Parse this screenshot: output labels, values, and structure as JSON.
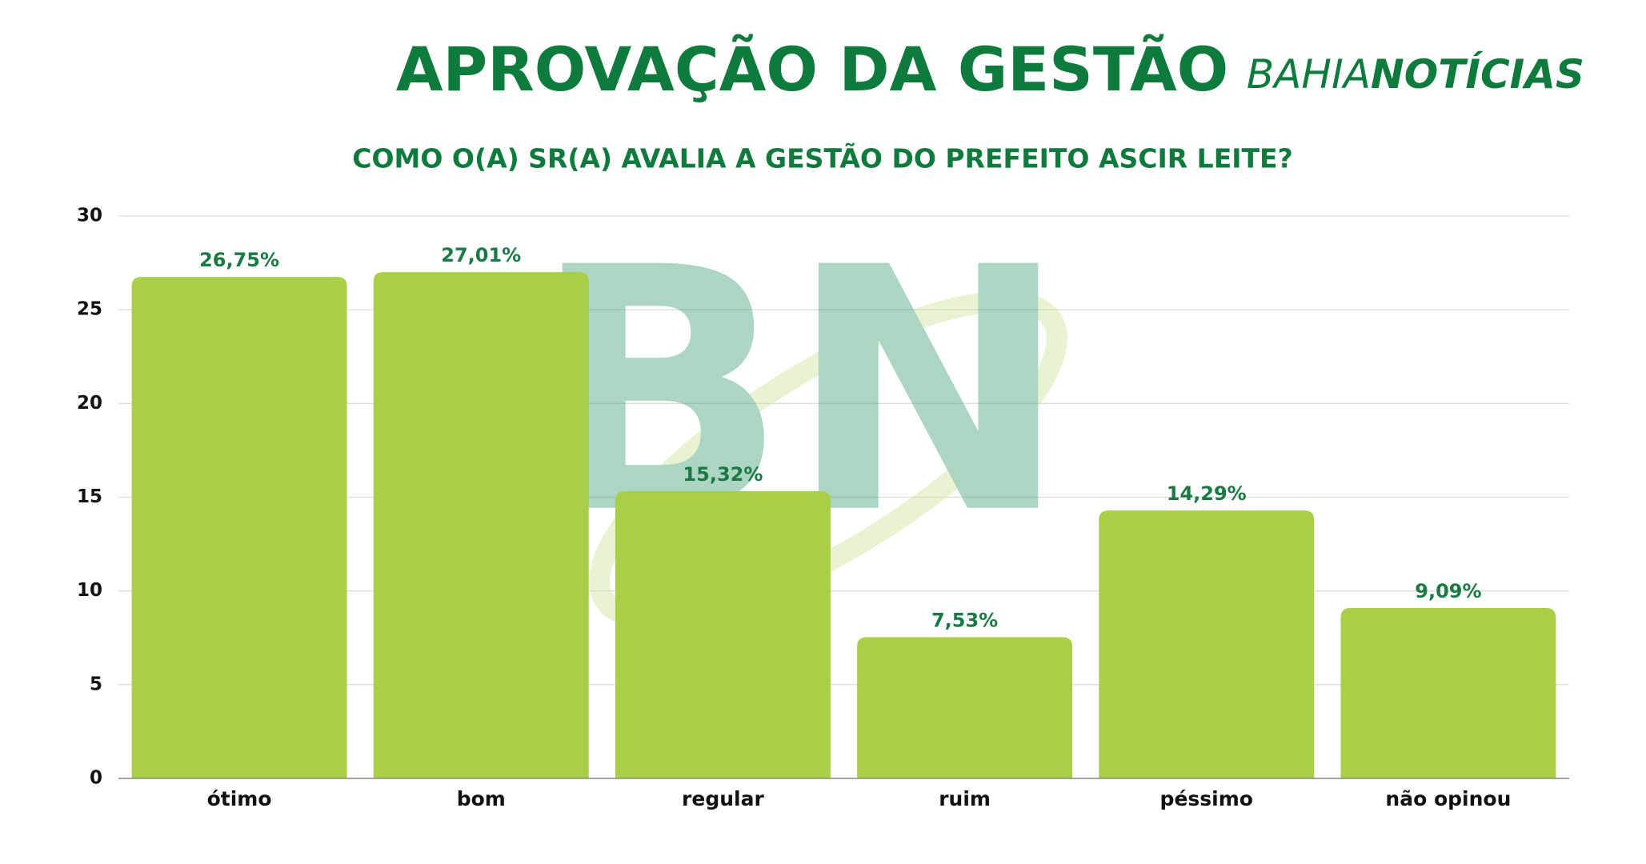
{
  "chart_data": {
    "type": "bar",
    "title": "APROVAÇÃO DA GESTÃO",
    "subtitle": "COMO O(A) SR(A) AVALIA A GESTÃO DO PREFEITO ASCIR LEITE?",
    "logo": {
      "light": "BAHIA",
      "bold": "NOTÍCIAS"
    },
    "watermark": "BN",
    "categories": [
      "ótimo",
      "bom",
      "regular",
      "ruim",
      "péssimo",
      "não opinou"
    ],
    "values": [
      26.75,
      27.01,
      15.32,
      7.53,
      14.29,
      9.09
    ],
    "value_labels": [
      "26,75%",
      "27,01%",
      "15,32%",
      "7,53%",
      "14,29%",
      "9,09%"
    ],
    "color": "#a8cf45",
    "ylim": [
      0,
      30
    ],
    "yticks": [
      0,
      5,
      10,
      15,
      20,
      25,
      30
    ],
    "grid": true
  }
}
